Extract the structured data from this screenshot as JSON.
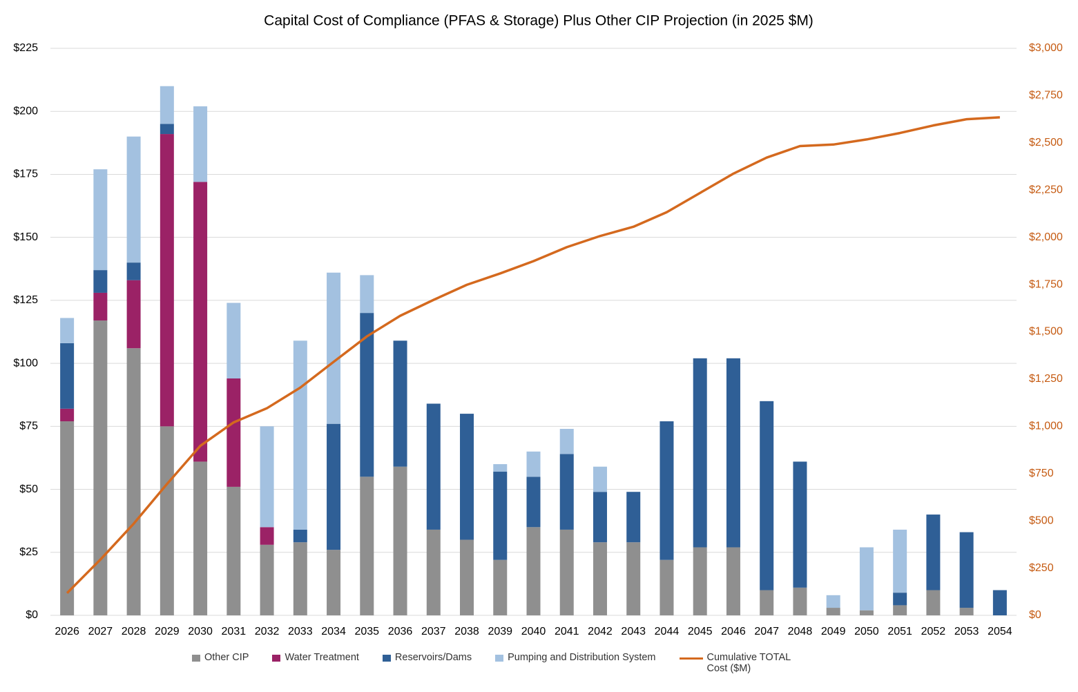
{
  "chart_data": {
    "type": "bar-line",
    "title": "Capital Cost of Compliance (PFAS & Storage) Plus Other CIP Projection (in 2025 $M)",
    "categories": [
      "2026",
      "2027",
      "2028",
      "2029",
      "2030",
      "2031",
      "2032",
      "2033",
      "2034",
      "2035",
      "2036",
      "2037",
      "2038",
      "2039",
      "2040",
      "2041",
      "2042",
      "2043",
      "2044",
      "2045",
      "2046",
      "2047",
      "2048",
      "2049",
      "2050",
      "2051",
      "2052",
      "2053",
      "2054"
    ],
    "series": [
      {
        "name": "Other CIP",
        "color": "#8f8f8f",
        "values": [
          77,
          117,
          106,
          75,
          61,
          51,
          28,
          29,
          26,
          55,
          59,
          34,
          30,
          22,
          35,
          34,
          29,
          29,
          22,
          27,
          27,
          10,
          11,
          3,
          2,
          4,
          10,
          3,
          0
        ]
      },
      {
        "name": "Water Treatment",
        "color": "#9b2266",
        "values": [
          5,
          11,
          27,
          116,
          111,
          43,
          7,
          0,
          0,
          0,
          0,
          0,
          0,
          0,
          0,
          0,
          0,
          0,
          0,
          0,
          0,
          0,
          0,
          0,
          0,
          0,
          0,
          0,
          0
        ]
      },
      {
        "name": "Reservoirs/Dams",
        "color": "#2f5f96",
        "values": [
          26,
          9,
          7,
          4,
          0,
          0,
          0,
          5,
          50,
          65,
          50,
          50,
          50,
          35,
          20,
          30,
          20,
          20,
          55,
          75,
          75,
          75,
          50,
          0,
          0,
          5,
          30,
          30,
          10
        ]
      },
      {
        "name": "Pumping and Distribution System",
        "color": "#a3c1e0",
        "values": [
          10,
          40,
          50,
          15,
          30,
          30,
          40,
          75,
          60,
          15,
          0,
          0,
          0,
          3,
          10,
          10,
          10,
          0,
          0,
          0,
          0,
          0,
          0,
          5,
          25,
          25,
          0,
          0,
          0
        ]
      },
      {
        "name": "Cumulative TOTAL Cost ($M)",
        "color": "#d4691e",
        "axis": "y2",
        "type": "line",
        "values": [
          118,
          295,
          485,
          695,
          897,
          1021,
          1096,
          1205,
          1341,
          1476,
          1585,
          1669,
          1749,
          1809,
          1874,
          1948,
          2007,
          2056,
          2133,
          2235,
          2337,
          2422,
          2483,
          2491,
          2518,
          2552,
          2592,
          2625,
          2635
        ]
      }
    ],
    "ylim": [
      0,
      225
    ],
    "yticks": [
      {
        "value": 0,
        "label": "$0"
      },
      {
        "value": 25,
        "label": "$25"
      },
      {
        "value": 50,
        "label": "$50"
      },
      {
        "value": 75,
        "label": "$75"
      },
      {
        "value": 100,
        "label": "$100"
      },
      {
        "value": 125,
        "label": "$125"
      },
      {
        "value": 150,
        "label": "$150"
      },
      {
        "value": 175,
        "label": "$175"
      },
      {
        "value": 200,
        "label": "$200"
      },
      {
        "value": 225,
        "label": "$225"
      }
    ],
    "y2lim": [
      0,
      3000
    ],
    "y2ticks": [
      {
        "value": 0,
        "label": "$0"
      },
      {
        "value": 250,
        "label": "$250"
      },
      {
        "value": 500,
        "label": "$500"
      },
      {
        "value": 750,
        "label": "$750"
      },
      {
        "value": 1000,
        "label": "$1,000"
      },
      {
        "value": 1250,
        "label": "$1,250"
      },
      {
        "value": 1500,
        "label": "$1,500"
      },
      {
        "value": 1750,
        "label": "$1,750"
      },
      {
        "value": 2000,
        "label": "$2,000"
      },
      {
        "value": 2250,
        "label": "$2,250"
      },
      {
        "value": 2500,
        "label": "$2,500"
      },
      {
        "value": 2750,
        "label": "$2,750"
      },
      {
        "value": 3000,
        "label": "$3,000"
      }
    ],
    "y2_color": "#c55a11",
    "grid": true,
    "legend": "bottom"
  }
}
